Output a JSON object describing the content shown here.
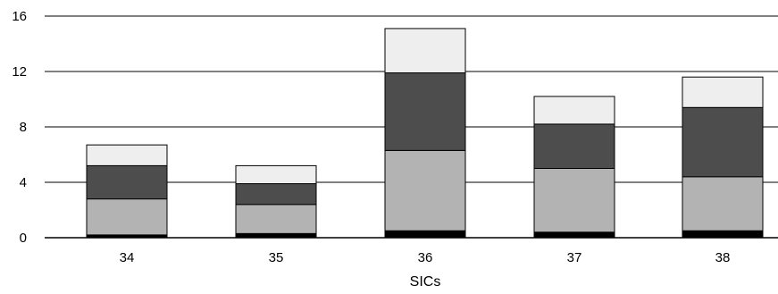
{
  "chart_data": {
    "type": "bar",
    "stacked": true,
    "title": "",
    "xlabel": "SICs",
    "ylabel": "",
    "ylim": [
      0,
      16
    ],
    "yticks": [
      0,
      4,
      8,
      12,
      16
    ],
    "grid": true,
    "legend": "none",
    "categories": [
      "34",
      "35",
      "36",
      "37",
      "38"
    ],
    "series": [
      {
        "color": "#000000",
        "values": [
          0.2,
          0.3,
          0.5,
          0.4,
          0.5
        ]
      },
      {
        "color": "#b3b3b3",
        "values": [
          2.6,
          2.1,
          5.8,
          4.6,
          3.9
        ]
      },
      {
        "color": "#4d4d4d",
        "values": [
          2.4,
          1.5,
          5.6,
          3.2,
          5.0
        ]
      },
      {
        "color": "#eeeeee",
        "values": [
          1.5,
          1.3,
          3.2,
          2.0,
          2.2
        ]
      }
    ]
  }
}
